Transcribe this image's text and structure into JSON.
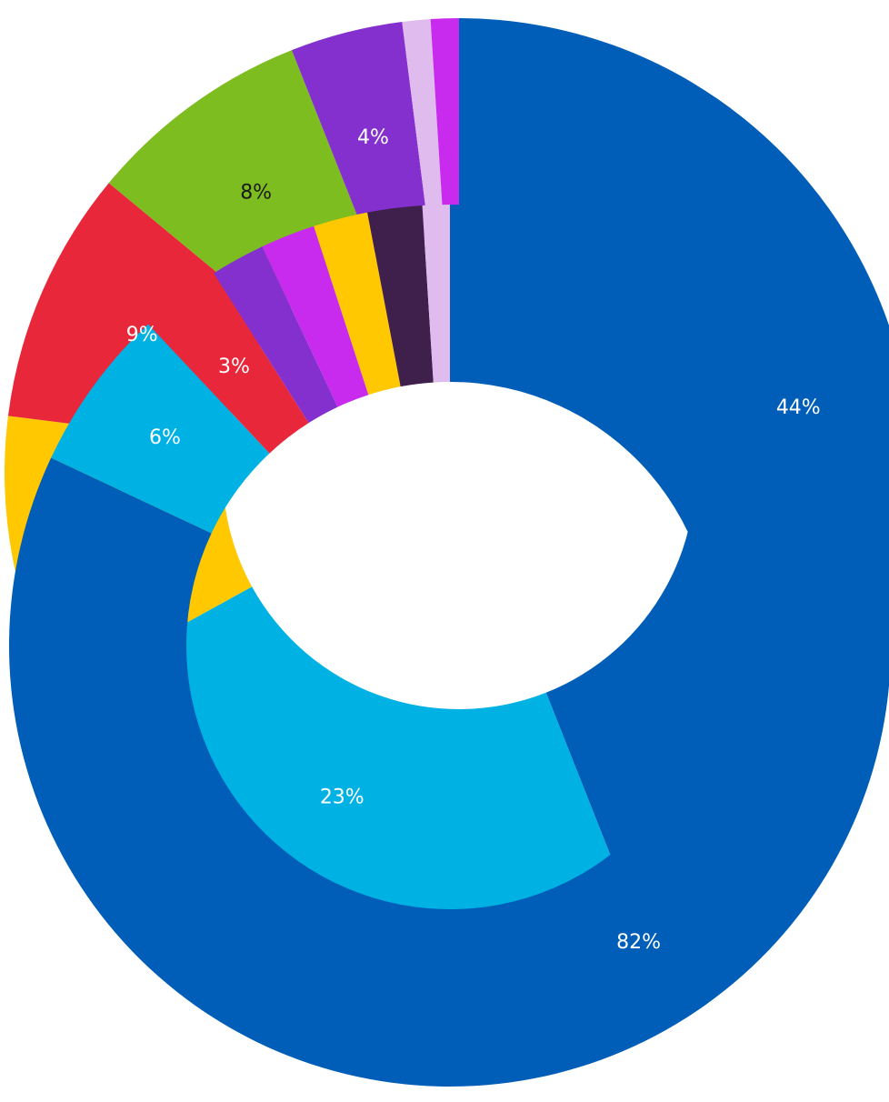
{
  "chart_data": [
    {
      "type": "donut",
      "values": [
        44,
        23,
        10,
        9,
        8,
        4,
        1,
        1
      ],
      "value_labels": [
        "44%",
        "23%",
        null,
        "9%",
        "8%",
        "4%",
        null,
        null
      ],
      "colors": [
        "#005EB8",
        "#00B2E3",
        "#FFC800",
        "#E8283A",
        "#7DBD20",
        "#8430CE",
        "#E0BBEE",
        "#C82BEE"
      ]
    },
    {
      "type": "donut",
      "values": [
        82,
        6,
        3,
        2,
        2,
        2,
        2,
        1
      ],
      "value_labels": [
        "82%",
        "6%",
        "3%",
        null,
        null,
        null,
        null,
        null
      ],
      "colors": [
        "#005EB8",
        "#00B2E3",
        "#E8283A",
        "#8430CE",
        "#C82BEE",
        "#FFC800",
        "#3F204D",
        "#E0BBEE"
      ]
    }
  ]
}
